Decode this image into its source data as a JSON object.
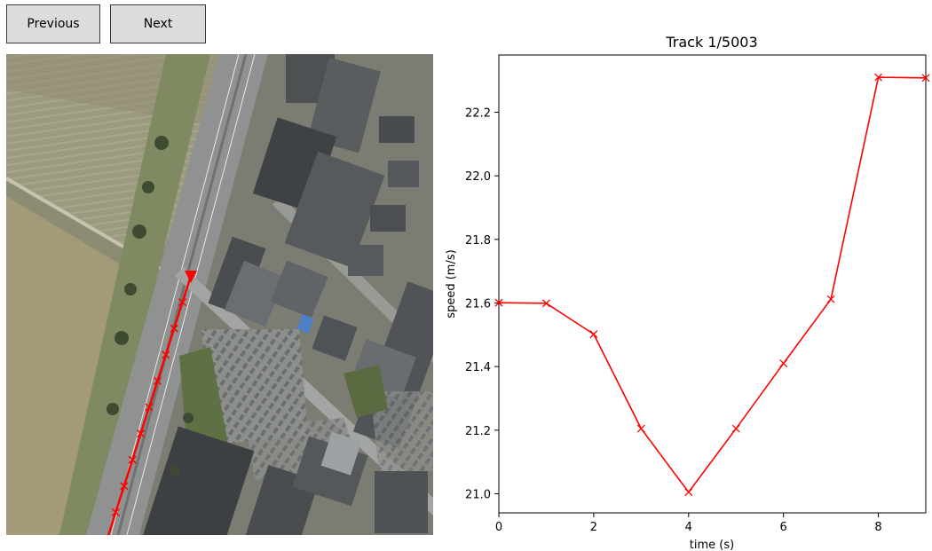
{
  "controls": {
    "previous_label": "Previous",
    "next_label": "Next"
  },
  "map": {
    "track_color": "#ff0000",
    "track_points": 11
  },
  "chart_data": {
    "type": "line",
    "title": "Track 1/5003",
    "xlabel": "time (s)",
    "ylabel": "speed (m/s)",
    "x": [
      0,
      1,
      2,
      3,
      4,
      5,
      6,
      7,
      8,
      9
    ],
    "series": [
      {
        "values": [
          21.601,
          21.599,
          21.502,
          21.205,
          21.005,
          21.205,
          21.41,
          21.612,
          22.31,
          22.308
        ],
        "color": "#ff0000",
        "marker": "x"
      }
    ],
    "xlim": [
      0,
      9
    ],
    "ylim": [
      20.94,
      22.38
    ],
    "xticks": [
      "0",
      "2",
      "4",
      "6",
      "8"
    ],
    "yticks": [
      "21.0",
      "21.2",
      "21.4",
      "21.6",
      "21.8",
      "22.0",
      "22.2"
    ],
    "grid": false
  }
}
